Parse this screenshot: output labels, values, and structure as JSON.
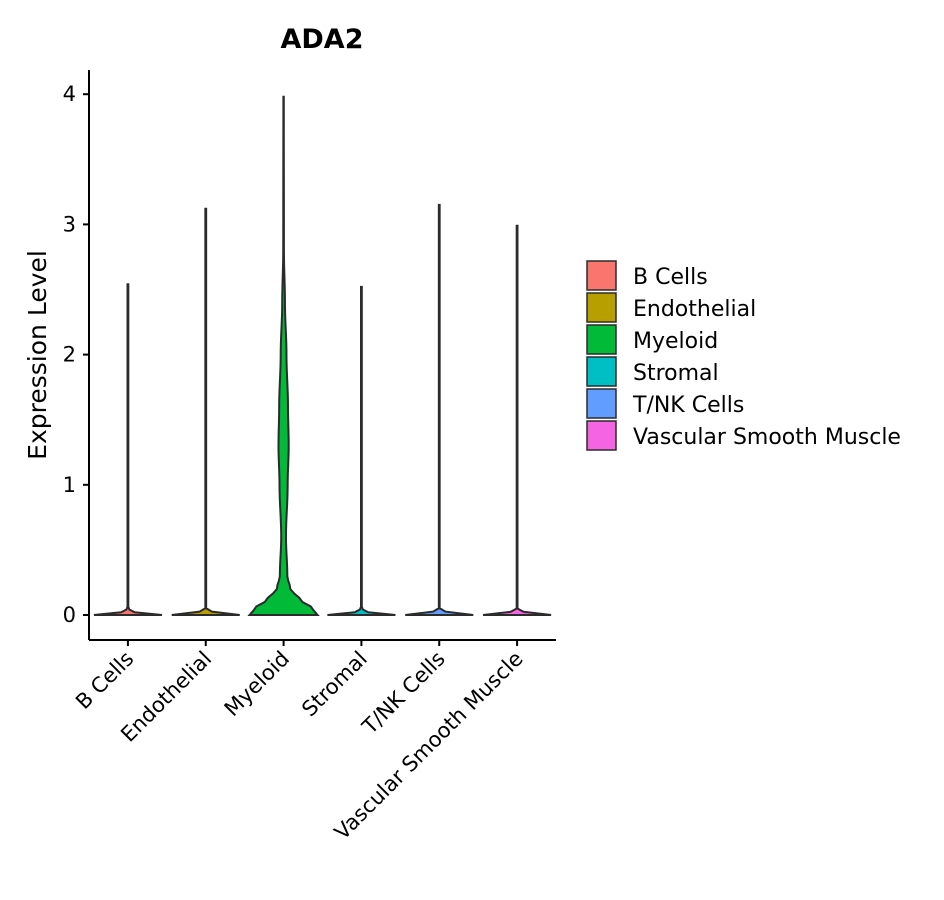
{
  "chart_data": {
    "type": "violin",
    "title": "ADA2",
    "xlabel": "",
    "ylabel": "Expression Level",
    "ylim": [
      -0.2,
      4.18
    ],
    "yticks": [
      0,
      1,
      2,
      3,
      4
    ],
    "categories": [
      "B Cells",
      "Endothelial",
      "Myeloid",
      "Stromal",
      "T/NK Cells",
      "Vascular Smooth Muscle"
    ],
    "series": [
      {
        "name": "B Cells",
        "color": "#F8766D",
        "max": 2.54,
        "profile": [
          [
            0,
            1.0
          ],
          [
            0.02,
            0.2
          ],
          [
            0.05,
            0.012
          ],
          [
            2.54,
            0.012
          ]
        ]
      },
      {
        "name": "Endothelial",
        "color": "#B79F00",
        "max": 3.12,
        "profile": [
          [
            0,
            1.0
          ],
          [
            0.02,
            0.2
          ],
          [
            0.05,
            0.012
          ],
          [
            3.12,
            0.012
          ]
        ]
      },
      {
        "name": "Myeloid",
        "color": "#00BA38",
        "max": 3.98,
        "profile": [
          [
            0,
            1.0
          ],
          [
            0.05,
            0.85
          ],
          [
            0.12,
            0.48
          ],
          [
            0.2,
            0.2
          ],
          [
            0.3,
            0.11
          ],
          [
            0.6,
            0.07
          ],
          [
            1.0,
            0.12
          ],
          [
            1.3,
            0.15
          ],
          [
            1.6,
            0.13
          ],
          [
            2.0,
            0.085
          ],
          [
            2.4,
            0.04
          ],
          [
            2.8,
            0.01
          ],
          [
            3.98,
            0.006
          ]
        ]
      },
      {
        "name": "Stromal",
        "color": "#00BFC4",
        "max": 2.52,
        "profile": [
          [
            0,
            1.0
          ],
          [
            0.02,
            0.2
          ],
          [
            0.05,
            0.012
          ],
          [
            2.52,
            0.012
          ]
        ]
      },
      {
        "name": "T/NK Cells",
        "color": "#619CFF",
        "max": 3.15,
        "profile": [
          [
            0,
            1.0
          ],
          [
            0.02,
            0.2
          ],
          [
            0.05,
            0.012
          ],
          [
            3.15,
            0.012
          ]
        ]
      },
      {
        "name": "Vascular Smooth Muscle",
        "color": "#F564E3",
        "max": 2.99,
        "profile": [
          [
            0,
            1.0
          ],
          [
            0.02,
            0.2
          ],
          [
            0.05,
            0.012
          ],
          [
            2.99,
            0.012
          ]
        ]
      }
    ],
    "legend": {
      "position": "right"
    },
    "grid": false
  }
}
